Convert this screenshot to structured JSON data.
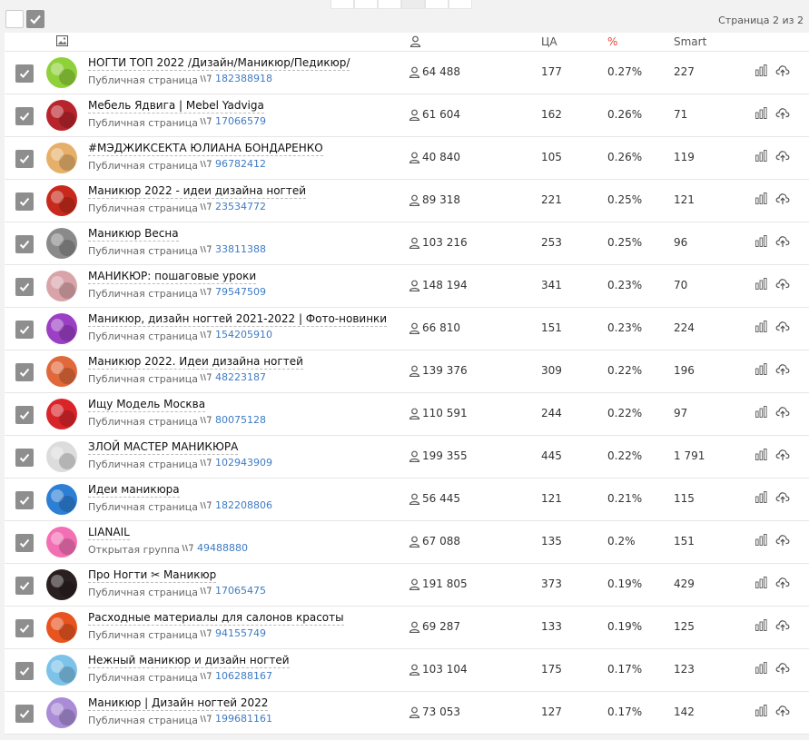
{
  "pagination": {
    "pages": [
      "",
      "",
      "",
      "",
      "",
      ""
    ],
    "active_index": 3,
    "info": "Страница 2 из 2"
  },
  "table": {
    "headers": {
      "ca": "ЦА",
      "percent": "%",
      "smart": "Smart"
    },
    "colors": {
      "percent_header": "#e0463d",
      "id_link": "#3e7bc4",
      "checkbox": "#8e8e8e"
    },
    "rows": [
      {
        "name": "НОГТИ ТОП 2022 /Дизайн/Маникюр/Педикюр/",
        "type": "Публичная страница",
        "id": "182388918",
        "subscribers": "64 488",
        "ca": "177",
        "percent": "0.27%",
        "smart": "227",
        "avatar_color": "#8fd13a"
      },
      {
        "name": "Мебель Ядвига | Mebel Yadviga",
        "type": "Публичная страница",
        "id": "17066579",
        "subscribers": "61 604",
        "ca": "162",
        "percent": "0.26%",
        "smart": "71",
        "avatar_color": "#b8242b"
      },
      {
        "name": "#МЭДЖИКСЕКТА ЮЛИАНА БОНДАРЕНКО",
        "type": "Публичная страница",
        "id": "96782412",
        "subscribers": "40 840",
        "ca": "105",
        "percent": "0.26%",
        "smart": "119",
        "avatar_color": "#e6b06a"
      },
      {
        "name": "Маникюр 2022 - идеи дизайна ногтей",
        "type": "Публичная страница",
        "id": "23534772",
        "subscribers": "89 318",
        "ca": "221",
        "percent": "0.25%",
        "smart": "121",
        "avatar_color": "#c72a1c"
      },
      {
        "name": "Маникюр Весна",
        "type": "Публичная страница",
        "id": "33811388",
        "subscribers": "103 216",
        "ca": "253",
        "percent": "0.25%",
        "smart": "96",
        "avatar_color": "#8a8a8a"
      },
      {
        "name": "МАНИКЮР: пошаговые уроки",
        "type": "Публичная страница",
        "id": "79547509",
        "subscribers": "148 194",
        "ca": "341",
        "percent": "0.23%",
        "smart": "70",
        "avatar_color": "#d9a4a9"
      },
      {
        "name": "Маникюр, дизайн ногтей 2021-2022 | Фото-новинки",
        "type": "Публичная страница",
        "id": "154205910",
        "subscribers": "66 810",
        "ca": "151",
        "percent": "0.23%",
        "smart": "224",
        "avatar_color": "#9b3fc4"
      },
      {
        "name": "Маникюр 2022. Идеи дизайна ногтей",
        "type": "Публичная страница",
        "id": "48223187",
        "subscribers": "139 376",
        "ca": "309",
        "percent": "0.22%",
        "smart": "196",
        "avatar_color": "#e0683a"
      },
      {
        "name": "Ищу Модель Москва",
        "type": "Публичная страница",
        "id": "80075128",
        "subscribers": "110 591",
        "ca": "244",
        "percent": "0.22%",
        "smart": "97",
        "avatar_color": "#d9252a"
      },
      {
        "name": "ЗЛОЙ МАСТЕР МАНИКЮРА",
        "type": "Публичная страница",
        "id": "102943909",
        "subscribers": "199 355",
        "ca": "445",
        "percent": "0.22%",
        "smart": "1 791",
        "avatar_color": "#dcdcdc"
      },
      {
        "name": "Идеи маникюра",
        "type": "Публичная страница",
        "id": "182208806",
        "subscribers": "56 445",
        "ca": "121",
        "percent": "0.21%",
        "smart": "115",
        "avatar_color": "#2d7fd6"
      },
      {
        "name": "LIANAIL",
        "type": "Открытая группа",
        "id": "49488880",
        "subscribers": "67 088",
        "ca": "135",
        "percent": "0.2%",
        "smart": "151",
        "avatar_color": "#f36fb4"
      },
      {
        "name": "Про Ногти ✂ Маникюр",
        "type": "Публичная страница",
        "id": "17065475",
        "subscribers": "191 805",
        "ca": "373",
        "percent": "0.19%",
        "smart": "429",
        "avatar_color": "#2a2020"
      },
      {
        "name": "Расходные материалы для салонов красоты",
        "type": "Публичная страница",
        "id": "94155749",
        "subscribers": "69 287",
        "ca": "133",
        "percent": "0.19%",
        "smart": "125",
        "avatar_color": "#e8541f"
      },
      {
        "name": "Нежный маникюр и дизайн ногтей",
        "type": "Публичная страница",
        "id": "106288167",
        "subscribers": "103 104",
        "ca": "175",
        "percent": "0.17%",
        "smart": "123",
        "avatar_color": "#7dc2e8"
      },
      {
        "name": "Маникюр | Дизайн ногтей 2022",
        "type": "Публичная страница",
        "id": "199681161",
        "subscribers": "73 053",
        "ca": "127",
        "percent": "0.17%",
        "smart": "142",
        "avatar_color": "#a98bd6"
      }
    ]
  },
  "icons": {
    "image_col": "image-icon",
    "subscribers": "user-icon",
    "id_link": "vk-id-icon",
    "stats": "bar-chart-icon",
    "upload": "cloud-upload-icon",
    "checkbox": "checkmark-icon"
  }
}
